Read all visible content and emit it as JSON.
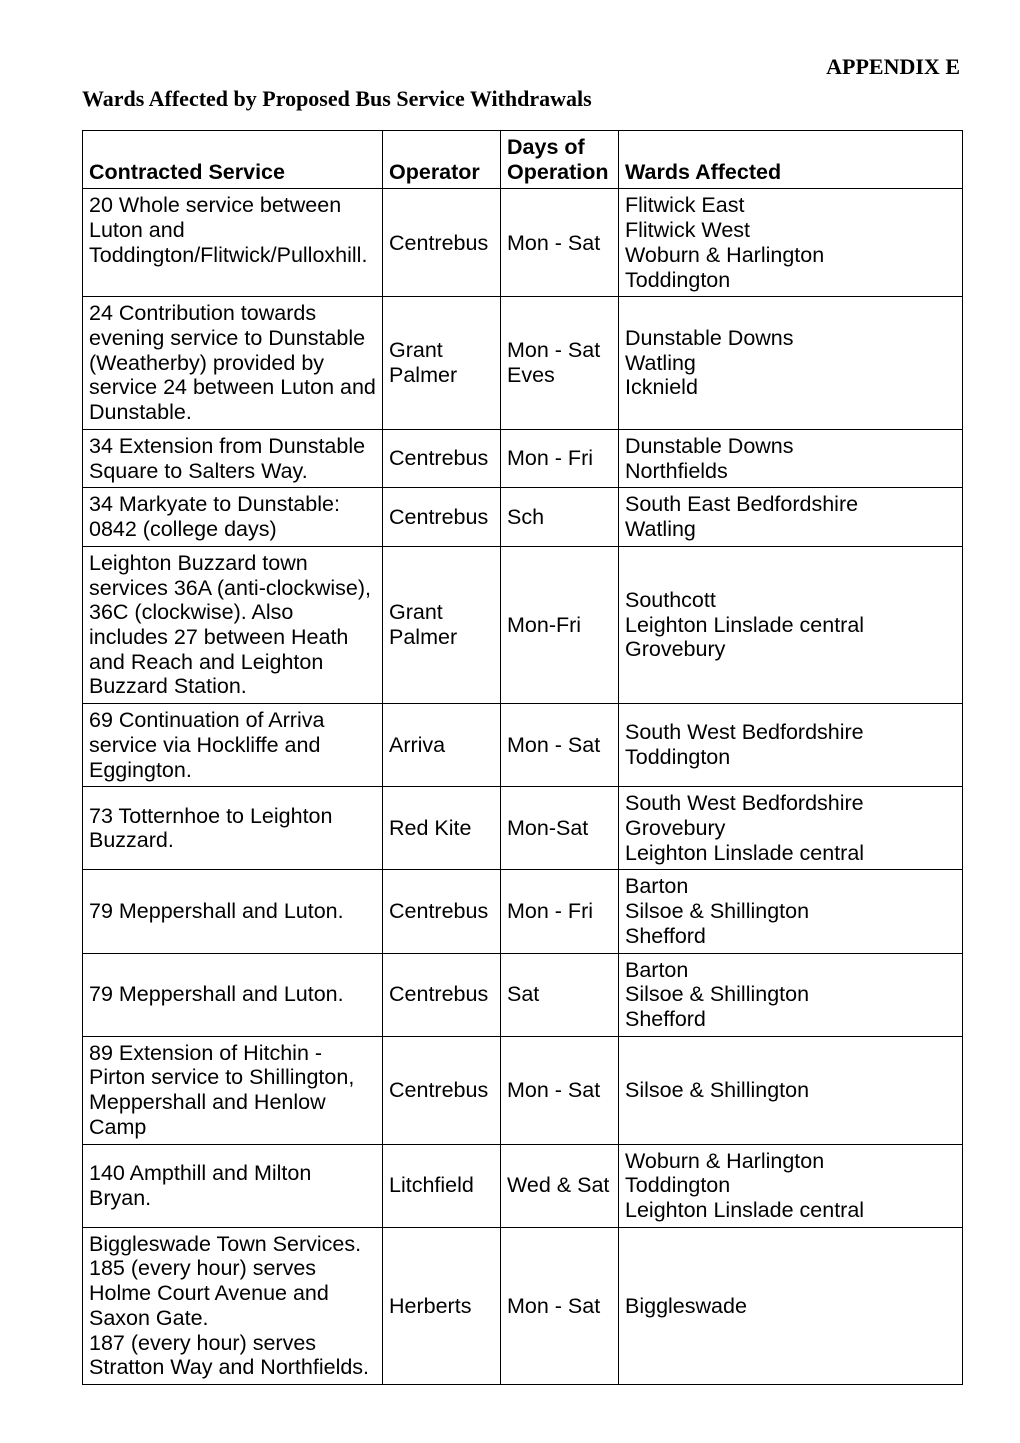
{
  "appendix": "APPENDIX E",
  "title": "Wards Affected by Proposed Bus Service Withdrawals",
  "headers": {
    "contracted": "Contracted Service",
    "operator": "Operator",
    "days_label1": "Days of",
    "days_label2": "Operation",
    "wards": "Wards Affected"
  },
  "rows": [
    {
      "service": "20 Whole service between Luton and Toddington/Flitwick/Pulloxhill.",
      "operator": "Centrebus",
      "days": "Mon - Sat",
      "wards": "Flitwick East\nFlitwick West\nWoburn & Harlington\nToddington",
      "op_mid": true,
      "days_mid": true
    },
    {
      "service": "24 Contribution towards evening service to Dunstable (Weatherby) provided by service 24 between Luton and Dunstable.",
      "operator": "Grant Palmer",
      "days": "Mon - Sat Eves",
      "wards": "Dunstable Downs\nWatling\nIcknield",
      "op_mid": true,
      "days_mid": true,
      "wards_mid": true
    },
    {
      "service": "34 Extension from Dunstable Square to Salters Way.",
      "operator": "Centrebus",
      "days": "Mon - Fri",
      "wards": "Dunstable Downs\nNorthfields",
      "op_mid": true,
      "days_mid": true
    },
    {
      "service": "34 Markyate to Dunstable: 0842 (college days)",
      "operator": "Centrebus",
      "days": "Sch",
      "wards": "South East Bedfordshire\nWatling",
      "op_mid": true,
      "days_mid": true
    },
    {
      "service": "Leighton Buzzard town services 36A (anti-clockwise), 36C (clockwise). Also includes 27 between Heath and Reach and Leighton Buzzard Station.",
      "operator": "Grant Palmer",
      "days": "Mon-Fri",
      "wards": "Southcott\nLeighton Linslade central\nGrovebury",
      "op_mid": true,
      "days_mid": true,
      "wards_mid": true
    },
    {
      "service": "69 Continuation of Arriva service via Hockliffe and Eggington.",
      "operator": "Arriva",
      "days": "Mon - Sat",
      "wards": "South West Bedfordshire\nToddington",
      "op_mid": true,
      "days_mid": true,
      "wards_mid": true
    },
    {
      "service": "73 Totternhoe to Leighton Buzzard.",
      "operator": "Red Kite",
      "days": "Mon-Sat",
      "wards": "South West Bedfordshire\nGrovebury\nLeighton Linslade central",
      "svc_mid": true,
      "op_mid": true,
      "days_mid": true
    },
    {
      "service": "79 Meppershall and Luton.",
      "operator": "Centrebus",
      "days": "Mon - Fri",
      "wards": "Barton\nSilsoe & Shillington\nShefford",
      "svc_mid": true,
      "op_mid": true,
      "days_mid": true
    },
    {
      "service": "79 Meppershall and Luton.",
      "operator": "Centrebus",
      "days": "Sat",
      "wards": "Barton\nSilsoe & Shillington\nShefford",
      "svc_mid": true,
      "op_mid": true,
      "days_mid": true
    },
    {
      "service": "89 Extension of Hitchin - Pirton service to Shillington, Meppershall and Henlow Camp",
      "operator": "Centrebus",
      "days": "Mon - Sat",
      "wards": "Silsoe & Shillington",
      "op_mid": true,
      "days_mid": true,
      "wards_mid": true
    },
    {
      "service": "140 Ampthill and Milton Bryan.",
      "operator": "Litchfield",
      "days": "Wed & Sat",
      "wards": "Woburn & Harlington\nToddington\nLeighton Linslade central",
      "svc_mid": true,
      "op_mid": true,
      "days_mid": true
    },
    {
      "service": "Biggleswade Town Services. 185 (every hour) serves Holme Court Avenue and Saxon Gate.\n187 (every hour) serves Stratton Way and Northfields.",
      "operator": "Herberts",
      "days": "Mon - Sat",
      "wards": "Biggleswade",
      "op_mid": true,
      "days_mid": true,
      "wards_mid": true
    }
  ]
}
